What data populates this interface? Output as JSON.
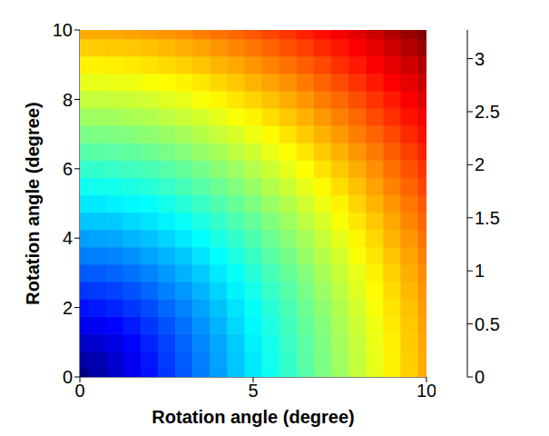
{
  "chart_data": {
    "type": "heatmap",
    "x_label": "Rotation angle (degree)",
    "y_label": "Rotation angle (degree)",
    "x": [
      0,
      0.5,
      1,
      1.5,
      2,
      2.5,
      3,
      3.5,
      4,
      4.5,
      5,
      5.5,
      6,
      6.5,
      7,
      7.5,
      8,
      8.5,
      9,
      9.5,
      10
    ],
    "y": [
      0,
      0.5,
      1,
      1.5,
      2,
      2.5,
      3,
      3.5,
      4,
      4.5,
      5,
      5.5,
      6,
      6.5,
      7,
      7.5,
      8,
      8.5,
      9,
      9.5,
      10
    ],
    "xlim": [
      0,
      10
    ],
    "ylim": [
      0,
      10
    ],
    "xticks": [
      0,
      5,
      10
    ],
    "yticks": [
      0,
      2,
      4,
      6,
      8,
      10
    ],
    "cells": [
      [
        0,
        0.12,
        0.23,
        0.35,
        0.46,
        0.58,
        0.69,
        0.81,
        0.92,
        1.04,
        1.16,
        1.27,
        1.39,
        1.5,
        1.62,
        1.73,
        1.85,
        1.96,
        2.08,
        2.19,
        2.31
      ],
      [
        0.12,
        0.16,
        0.26,
        0.37,
        0.48,
        0.59,
        0.7,
        0.82,
        0.93,
        1.05,
        1.16,
        1.28,
        1.39,
        1.51,
        1.62,
        1.74,
        1.85,
        1.97,
        2.08,
        2.2,
        2.31
      ],
      [
        0.23,
        0.26,
        0.33,
        0.42,
        0.52,
        0.62,
        0.73,
        0.84,
        0.95,
        1.06,
        1.18,
        1.29,
        1.41,
        1.52,
        1.63,
        1.75,
        1.86,
        1.98,
        2.09,
        2.21,
        2.32
      ],
      [
        0.35,
        0.37,
        0.42,
        0.49,
        0.58,
        0.67,
        0.77,
        0.88,
        0.99,
        1.1,
        1.21,
        1.32,
        1.43,
        1.54,
        1.65,
        1.77,
        1.88,
        1.99,
        2.11,
        2.22,
        2.34
      ],
      [
        0.46,
        0.48,
        0.52,
        0.58,
        0.65,
        0.74,
        0.83,
        0.93,
        1.03,
        1.14,
        1.24,
        1.35,
        1.46,
        1.57,
        1.68,
        1.79,
        1.9,
        2.02,
        2.13,
        2.24,
        2.36
      ],
      [
        0.58,
        0.59,
        0.62,
        0.67,
        0.74,
        0.82,
        0.9,
        0.99,
        1.09,
        1.19,
        1.29,
        1.4,
        1.5,
        1.61,
        1.72,
        1.83,
        1.94,
        2.05,
        2.16,
        2.27,
        2.38
      ],
      [
        0.69,
        0.7,
        0.73,
        0.77,
        0.83,
        0.9,
        0.98,
        1.06,
        1.16,
        1.25,
        1.35,
        1.45,
        1.55,
        1.65,
        1.76,
        1.87,
        1.97,
        2.08,
        2.19,
        2.3,
        2.41
      ],
      [
        0.81,
        0.82,
        0.84,
        0.88,
        0.93,
        0.99,
        1.06,
        1.14,
        1.23,
        1.32,
        1.41,
        1.51,
        1.6,
        1.71,
        1.81,
        1.91,
        2.02,
        2.12,
        2.23,
        2.34,
        2.45
      ],
      [
        0.92,
        0.93,
        0.95,
        0.99,
        1.03,
        1.09,
        1.16,
        1.23,
        1.31,
        1.39,
        1.48,
        1.57,
        1.67,
        1.76,
        1.86,
        1.96,
        2.07,
        2.17,
        2.28,
        2.38,
        2.49
      ],
      [
        1.04,
        1.05,
        1.06,
        1.1,
        1.14,
        1.19,
        1.25,
        1.32,
        1.39,
        1.47,
        1.55,
        1.64,
        1.73,
        1.83,
        1.92,
        2.02,
        2.12,
        2.22,
        2.32,
        2.43,
        2.53
      ],
      [
        1.16,
        1.16,
        1.18,
        1.21,
        1.24,
        1.29,
        1.35,
        1.41,
        1.48,
        1.55,
        1.63,
        1.72,
        1.8,
        1.89,
        1.99,
        2.08,
        2.18,
        2.28,
        2.38,
        2.48,
        2.58
      ],
      [
        1.27,
        1.28,
        1.29,
        1.32,
        1.35,
        1.4,
        1.45,
        1.51,
        1.57,
        1.64,
        1.72,
        1.8,
        1.88,
        1.97,
        2.06,
        2.15,
        2.24,
        2.34,
        2.44,
        2.54,
        2.64
      ],
      [
        1.39,
        1.39,
        1.41,
        1.43,
        1.46,
        1.5,
        1.55,
        1.6,
        1.67,
        1.73,
        1.8,
        1.88,
        1.96,
        2.04,
        2.13,
        2.22,
        2.31,
        2.4,
        2.5,
        2.6,
        2.69
      ],
      [
        1.5,
        1.51,
        1.52,
        1.54,
        1.57,
        1.61,
        1.65,
        1.71,
        1.76,
        1.83,
        1.89,
        1.97,
        2.04,
        2.12,
        2.21,
        2.29,
        2.38,
        2.47,
        2.56,
        2.66,
        2.76
      ],
      [
        1.62,
        1.62,
        1.63,
        1.65,
        1.68,
        1.72,
        1.76,
        1.81,
        1.86,
        1.92,
        1.99,
        2.06,
        2.13,
        2.21,
        2.29,
        2.37,
        2.46,
        2.54,
        2.63,
        2.73,
        2.82
      ],
      [
        1.73,
        1.74,
        1.75,
        1.77,
        1.79,
        1.83,
        1.87,
        1.91,
        1.96,
        2.02,
        2.08,
        2.15,
        2.22,
        2.29,
        2.37,
        2.45,
        2.53,
        2.62,
        2.71,
        2.8,
        2.89
      ],
      [
        1.85,
        1.85,
        1.86,
        1.88,
        1.9,
        1.94,
        1.97,
        2.02,
        2.07,
        2.12,
        2.18,
        2.24,
        2.31,
        2.38,
        2.46,
        2.53,
        2.61,
        2.7,
        2.78,
        2.87,
        2.96
      ],
      [
        1.96,
        1.97,
        1.98,
        1.99,
        2.02,
        2.05,
        2.08,
        2.12,
        2.17,
        2.22,
        2.28,
        2.34,
        2.4,
        2.47,
        2.54,
        2.62,
        2.7,
        2.78,
        2.86,
        2.94,
        3.03
      ],
      [
        2.08,
        2.08,
        2.09,
        2.11,
        2.13,
        2.16,
        2.19,
        2.23,
        2.28,
        2.32,
        2.38,
        2.44,
        2.5,
        2.56,
        2.63,
        2.71,
        2.78,
        2.86,
        2.94,
        3.02,
        3.11
      ],
      [
        2.19,
        2.2,
        2.21,
        2.22,
        2.24,
        2.27,
        2.3,
        2.34,
        2.38,
        2.43,
        2.48,
        2.54,
        2.6,
        2.66,
        2.73,
        2.8,
        2.87,
        2.94,
        3.02,
        3.1,
        3.19
      ],
      [
        2.31,
        2.31,
        2.32,
        2.34,
        2.36,
        2.38,
        2.41,
        2.45,
        2.49,
        2.53,
        2.58,
        2.64,
        2.69,
        2.76,
        2.82,
        2.89,
        2.96,
        3.03,
        3.11,
        3.19,
        3.27
      ]
    ],
    "colorbar": {
      "range": [
        0,
        3.27
      ],
      "ticks": [
        0,
        0.5,
        1,
        1.5,
        2,
        2.5,
        3
      ]
    }
  }
}
